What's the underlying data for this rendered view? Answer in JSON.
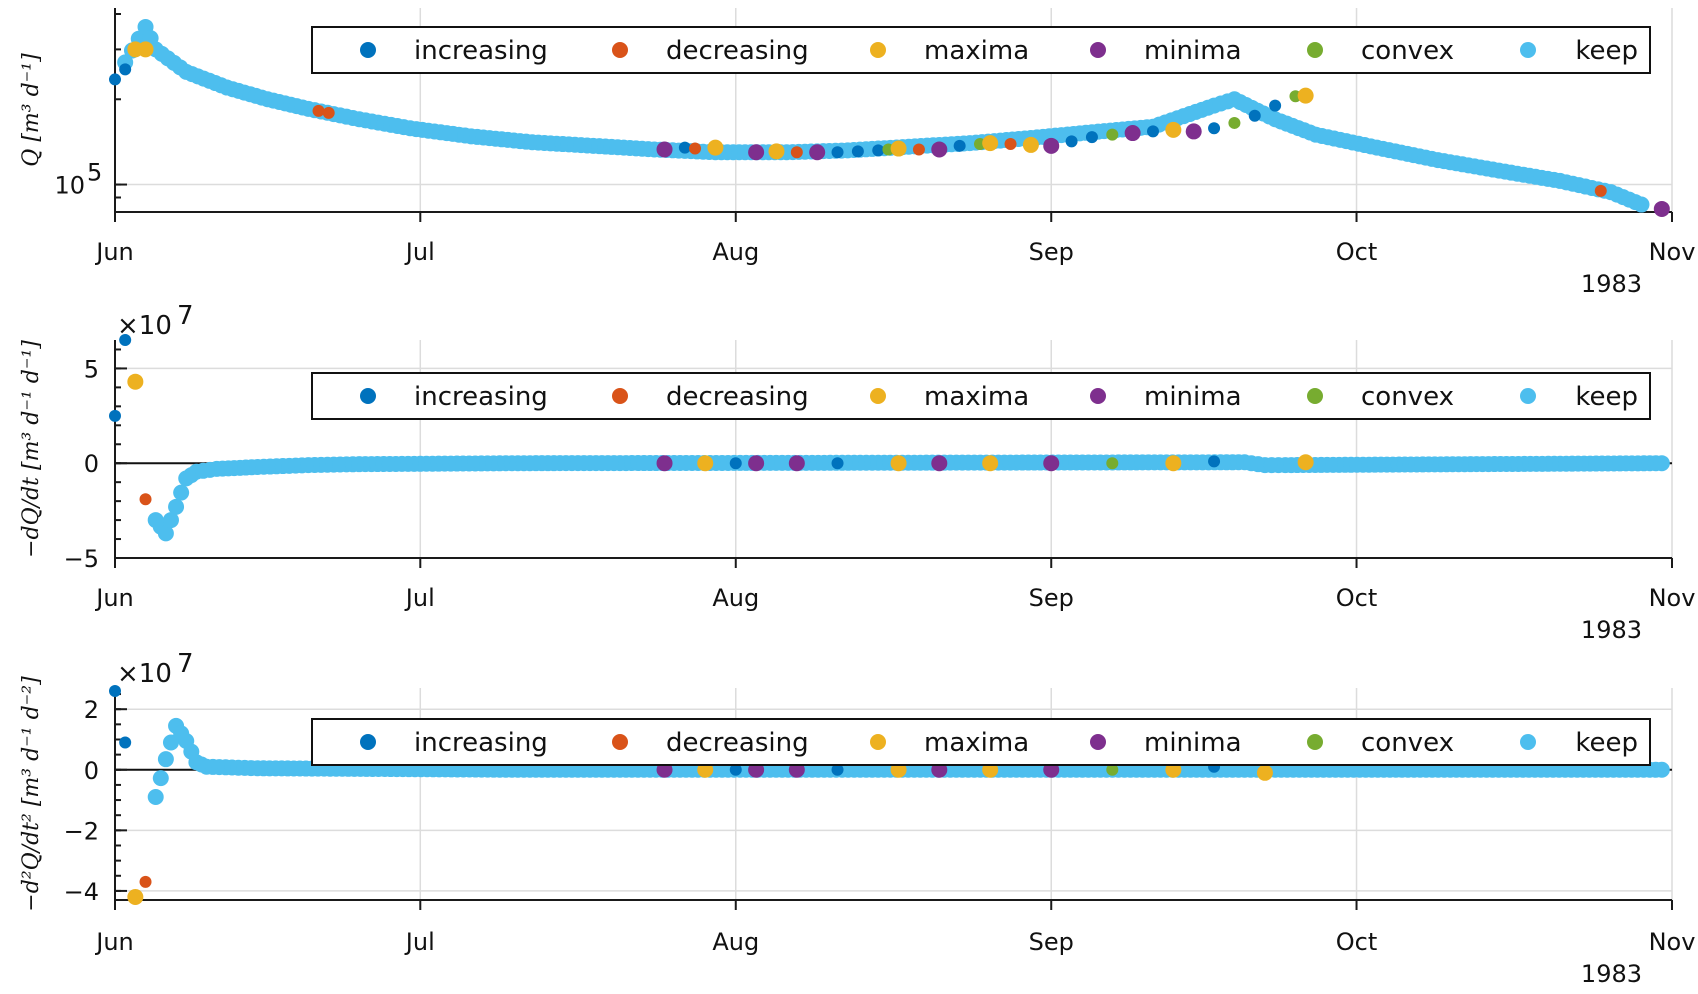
{
  "figure": {
    "year_label": "1983"
  },
  "legend": {
    "items": [
      {
        "key": "increasing",
        "label": "increasing",
        "color": "#0072BD"
      },
      {
        "key": "decreasing",
        "label": "decreasing",
        "color": "#D95319"
      },
      {
        "key": "maxima",
        "label": "maxima",
        "color": "#EDB120"
      },
      {
        "key": "minima",
        "label": "minima",
        "color": "#7E2F8E"
      },
      {
        "key": "convex",
        "label": "convex",
        "color": "#77AC30"
      },
      {
        "key": "keep",
        "label": "keep",
        "color": "#4DBEEE"
      }
    ]
  },
  "chart_data": [
    {
      "type": "scatter",
      "ylabel": "Q  [m³ d⁻¹]",
      "yscale": "log",
      "x_ticks": [
        "Jun",
        "Jul",
        "Aug",
        "Sep",
        "Oct",
        "Nov"
      ],
      "y_ticks": [
        {
          "value": 100000,
          "label": "10",
          "sup": "5"
        }
      ],
      "xlim": [
        "1983-06-01",
        "1983-11-01"
      ],
      "ylim": [
        80000,
        420000
      ],
      "keep_curve": [
        [
          "1983-06-02",
          270000
        ],
        [
          "1983-06-04",
          360000
        ],
        [
          "1983-06-05",
          300000
        ],
        [
          "1983-06-08",
          250000
        ],
        [
          "1983-06-12",
          220000
        ],
        [
          "1983-06-16",
          200000
        ],
        [
          "1983-06-20",
          185000
        ],
        [
          "1983-06-25",
          170000
        ],
        [
          "1983-06-30",
          158000
        ],
        [
          "1983-07-06",
          148000
        ],
        [
          "1983-07-12",
          141000
        ],
        [
          "1983-07-18",
          137000
        ],
        [
          "1983-07-24",
          133000
        ],
        [
          "1983-07-30",
          130000
        ],
        [
          "1983-08-06",
          130000
        ],
        [
          "1983-08-12",
          132000
        ],
        [
          "1983-08-18",
          136000
        ],
        [
          "1983-08-24",
          140000
        ],
        [
          "1983-08-30",
          146000
        ],
        [
          "1983-09-05",
          153000
        ],
        [
          "1983-09-11",
          160000
        ],
        [
          "1983-09-17",
          190000
        ],
        [
          "1983-09-19",
          200000
        ],
        [
          "1983-09-23",
          170000
        ],
        [
          "1983-09-27",
          150000
        ],
        [
          "1983-10-03",
          135000
        ],
        [
          "1983-10-09",
          122000
        ],
        [
          "1983-10-15",
          112000
        ],
        [
          "1983-10-21",
          103000
        ],
        [
          "1983-10-26",
          94000
        ],
        [
          "1983-10-29",
          85000
        ]
      ],
      "points": [
        [
          "1983-06-01",
          235000,
          "increasing"
        ],
        [
          "1983-06-02",
          255000,
          "increasing"
        ],
        [
          "1983-06-03",
          300000,
          "maxima"
        ],
        [
          "1983-06-04",
          300000,
          "maxima"
        ],
        [
          "1983-06-21",
          182000,
          "decreasing"
        ],
        [
          "1983-06-22",
          179000,
          "decreasing"
        ],
        [
          "1983-07-25",
          133000,
          "minima"
        ],
        [
          "1983-07-27",
          135000,
          "increasing"
        ],
        [
          "1983-07-28",
          134000,
          "decreasing"
        ],
        [
          "1983-07-30",
          135000,
          "maxima"
        ],
        [
          "1983-08-03",
          130000,
          "minima"
        ],
        [
          "1983-08-05",
          131000,
          "maxima"
        ],
        [
          "1983-08-07",
          130000,
          "decreasing"
        ],
        [
          "1983-08-09",
          130000,
          "minima"
        ],
        [
          "1983-08-11",
          130000,
          "increasing"
        ],
        [
          "1983-08-13",
          131000,
          "increasing"
        ],
        [
          "1983-08-15",
          132000,
          "increasing"
        ],
        [
          "1983-08-16",
          133000,
          "convex"
        ],
        [
          "1983-08-17",
          134000,
          "maxima"
        ],
        [
          "1983-08-19",
          133000,
          "decreasing"
        ],
        [
          "1983-08-21",
          133000,
          "minima"
        ],
        [
          "1983-08-23",
          137000,
          "increasing"
        ],
        [
          "1983-08-25",
          139000,
          "convex"
        ],
        [
          "1983-08-26",
          140000,
          "maxima"
        ],
        [
          "1983-08-28",
          139000,
          "decreasing"
        ],
        [
          "1983-08-30",
          138000,
          "maxima"
        ],
        [
          "1983-09-01",
          137000,
          "minima"
        ],
        [
          "1983-09-03",
          142000,
          "increasing"
        ],
        [
          "1983-09-05",
          147000,
          "increasing"
        ],
        [
          "1983-09-07",
          150000,
          "convex"
        ],
        [
          "1983-09-09",
          152000,
          "minima"
        ],
        [
          "1983-09-11",
          154000,
          "increasing"
        ],
        [
          "1983-09-13",
          156000,
          "maxima"
        ],
        [
          "1983-09-15",
          154000,
          "minima"
        ],
        [
          "1983-09-17",
          158000,
          "increasing"
        ],
        [
          "1983-09-19",
          165000,
          "convex"
        ],
        [
          "1983-09-21",
          175000,
          "increasing"
        ],
        [
          "1983-09-23",
          190000,
          "increasing"
        ],
        [
          "1983-09-25",
          205000,
          "convex"
        ],
        [
          "1983-09-26",
          206000,
          "maxima"
        ],
        [
          "1983-10-25",
          95000,
          "decreasing"
        ],
        [
          "1983-10-31",
          82000,
          "minima"
        ]
      ]
    },
    {
      "type": "scatter",
      "ylabel": "−dQ/dt  [m³ d⁻¹ d⁻¹]",
      "exponent": "7",
      "x_ticks": [
        "Jun",
        "Jul",
        "Aug",
        "Sep",
        "Oct",
        "Nov"
      ],
      "y_ticks": [
        -5,
        0,
        5
      ],
      "xlim": [
        "1983-06-01",
        "1983-11-01"
      ],
      "ylim": [
        -5,
        6.5
      ],
      "keep_curve": [
        [
          "1983-06-05",
          -3.0
        ],
        [
          "1983-06-06",
          -3.7
        ],
        [
          "1983-06-07",
          -2.3
        ],
        [
          "1983-06-08",
          -0.8
        ],
        [
          "1983-06-09",
          -0.45
        ],
        [
          "1983-06-11",
          -0.3
        ],
        [
          "1983-06-15",
          -0.2
        ],
        [
          "1983-06-20",
          -0.1
        ],
        [
          "1983-06-25",
          -0.05
        ],
        [
          "1983-07-10",
          0.0
        ],
        [
          "1983-09-20",
          0.05
        ],
        [
          "1983-09-22",
          -0.1
        ],
        [
          "1983-09-24",
          -0.1
        ],
        [
          "1983-10-31",
          0.0
        ]
      ],
      "points": [
        [
          "1983-06-01",
          2.5,
          "increasing"
        ],
        [
          "1983-06-02",
          6.5,
          "increasing"
        ],
        [
          "1983-06-03",
          4.3,
          "maxima"
        ],
        [
          "1983-06-04",
          -1.9,
          "decreasing"
        ],
        [
          "1983-07-25",
          0.0,
          "minima"
        ],
        [
          "1983-07-29",
          0.0,
          "maxima"
        ],
        [
          "1983-08-01",
          0.0,
          "increasing"
        ],
        [
          "1983-08-03",
          0.0,
          "minima"
        ],
        [
          "1983-08-07",
          0.0,
          "minima"
        ],
        [
          "1983-08-11",
          0.0,
          "increasing"
        ],
        [
          "1983-08-17",
          0.0,
          "maxima"
        ],
        [
          "1983-08-21",
          0.0,
          "minima"
        ],
        [
          "1983-08-26",
          0.0,
          "maxima"
        ],
        [
          "1983-09-01",
          0.0,
          "minima"
        ],
        [
          "1983-09-07",
          0.0,
          "convex"
        ],
        [
          "1983-09-13",
          0.0,
          "maxima"
        ],
        [
          "1983-09-17",
          0.1,
          "increasing"
        ],
        [
          "1983-09-26",
          0.05,
          "maxima"
        ]
      ]
    },
    {
      "type": "scatter",
      "ylabel": "−d²Q/dt²  [m³ d⁻¹ d⁻²]",
      "exponent": "7",
      "x_ticks": [
        "Jun",
        "Jul",
        "Aug",
        "Sep",
        "Oct",
        "Nov"
      ],
      "y_ticks": [
        -4,
        -2,
        0,
        2
      ],
      "xlim": [
        "1983-06-01",
        "1983-11-01"
      ],
      "ylim": [
        -4.3,
        2.7
      ],
      "keep_curve": [
        [
          "1983-06-05",
          -0.9
        ],
        [
          "1983-06-06",
          0.35
        ],
        [
          "1983-06-07",
          1.45
        ],
        [
          "1983-06-08",
          0.95
        ],
        [
          "1983-06-09",
          0.25
        ],
        [
          "1983-06-10",
          0.1
        ],
        [
          "1983-06-15",
          0.05
        ],
        [
          "1983-07-10",
          0.0
        ],
        [
          "1983-09-20",
          0.0
        ],
        [
          "1983-09-23",
          0.0
        ],
        [
          "1983-10-31",
          0.0
        ]
      ],
      "points": [
        [
          "1983-06-01",
          2.6,
          "increasing"
        ],
        [
          "1983-06-02",
          0.9,
          "increasing"
        ],
        [
          "1983-06-03",
          -4.2,
          "maxima"
        ],
        [
          "1983-06-04",
          -3.7,
          "decreasing"
        ],
        [
          "1983-07-25",
          0.0,
          "minima"
        ],
        [
          "1983-07-29",
          0.0,
          "maxima"
        ],
        [
          "1983-08-01",
          0.0,
          "increasing"
        ],
        [
          "1983-08-03",
          0.0,
          "minima"
        ],
        [
          "1983-08-07",
          0.0,
          "minima"
        ],
        [
          "1983-08-11",
          0.0,
          "increasing"
        ],
        [
          "1983-08-17",
          0.0,
          "maxima"
        ],
        [
          "1983-08-21",
          0.0,
          "minima"
        ],
        [
          "1983-08-26",
          0.0,
          "maxima"
        ],
        [
          "1983-09-01",
          0.0,
          "minima"
        ],
        [
          "1983-09-07",
          0.0,
          "convex"
        ],
        [
          "1983-09-13",
          0.0,
          "maxima"
        ],
        [
          "1983-09-17",
          0.1,
          "increasing"
        ],
        [
          "1983-09-22",
          -0.1,
          "maxima"
        ]
      ]
    }
  ]
}
